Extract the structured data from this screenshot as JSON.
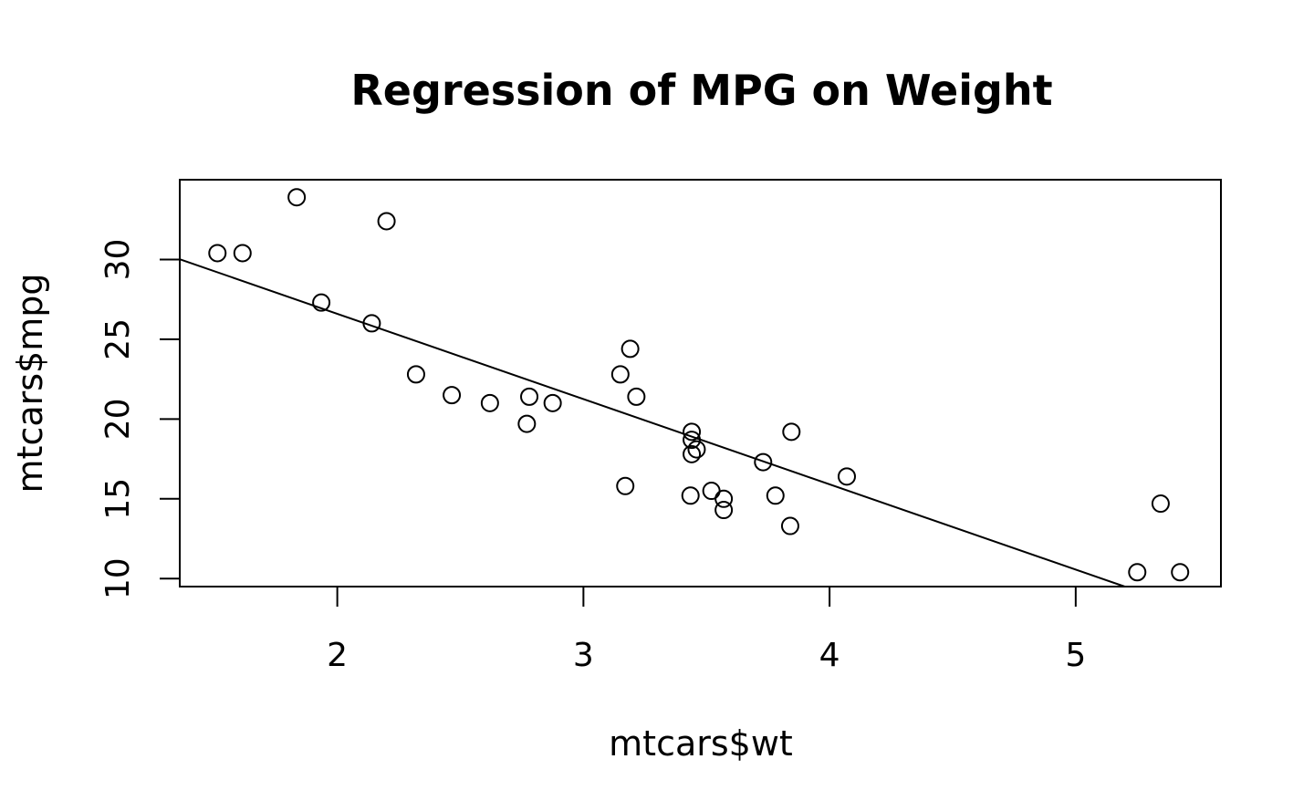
{
  "chart_data": {
    "type": "scatter",
    "title": "Regression of MPG on Weight",
    "xlabel": "mtcars$wt",
    "ylabel": "mtcars$mpg",
    "xlim": [
      1.36,
      5.59
    ],
    "ylim": [
      9.5,
      35.0
    ],
    "x_ticks": [
      2,
      3,
      4,
      5
    ],
    "y_ticks": [
      10,
      15,
      20,
      25,
      30
    ],
    "grid": false,
    "legend": "none",
    "regression_line": {
      "intercept": 37.285,
      "slope": -5.344
    },
    "points": [
      {
        "x": 2.62,
        "y": 21.0
      },
      {
        "x": 2.875,
        "y": 21.0
      },
      {
        "x": 2.32,
        "y": 22.8
      },
      {
        "x": 3.215,
        "y": 21.4
      },
      {
        "x": 3.44,
        "y": 18.7
      },
      {
        "x": 3.46,
        "y": 18.1
      },
      {
        "x": 3.57,
        "y": 14.3
      },
      {
        "x": 3.19,
        "y": 24.4
      },
      {
        "x": 3.15,
        "y": 22.8
      },
      {
        "x": 3.44,
        "y": 19.2
      },
      {
        "x": 3.44,
        "y": 17.8
      },
      {
        "x": 4.07,
        "y": 16.4
      },
      {
        "x": 3.73,
        "y": 17.3
      },
      {
        "x": 3.78,
        "y": 15.2
      },
      {
        "x": 5.25,
        "y": 10.4
      },
      {
        "x": 5.424,
        "y": 10.4
      },
      {
        "x": 5.345,
        "y": 14.7
      },
      {
        "x": 2.2,
        "y": 32.4
      },
      {
        "x": 1.615,
        "y": 30.4
      },
      {
        "x": 1.835,
        "y": 33.9
      },
      {
        "x": 2.465,
        "y": 21.5
      },
      {
        "x": 3.52,
        "y": 15.5
      },
      {
        "x": 3.435,
        "y": 15.2
      },
      {
        "x": 3.84,
        "y": 13.3
      },
      {
        "x": 3.845,
        "y": 19.2
      },
      {
        "x": 1.935,
        "y": 27.3
      },
      {
        "x": 2.14,
        "y": 26.0
      },
      {
        "x": 1.513,
        "y": 30.4
      },
      {
        "x": 3.17,
        "y": 15.8
      },
      {
        "x": 2.77,
        "y": 19.7
      },
      {
        "x": 3.57,
        "y": 15.0
      },
      {
        "x": 2.78,
        "y": 21.4
      }
    ]
  }
}
